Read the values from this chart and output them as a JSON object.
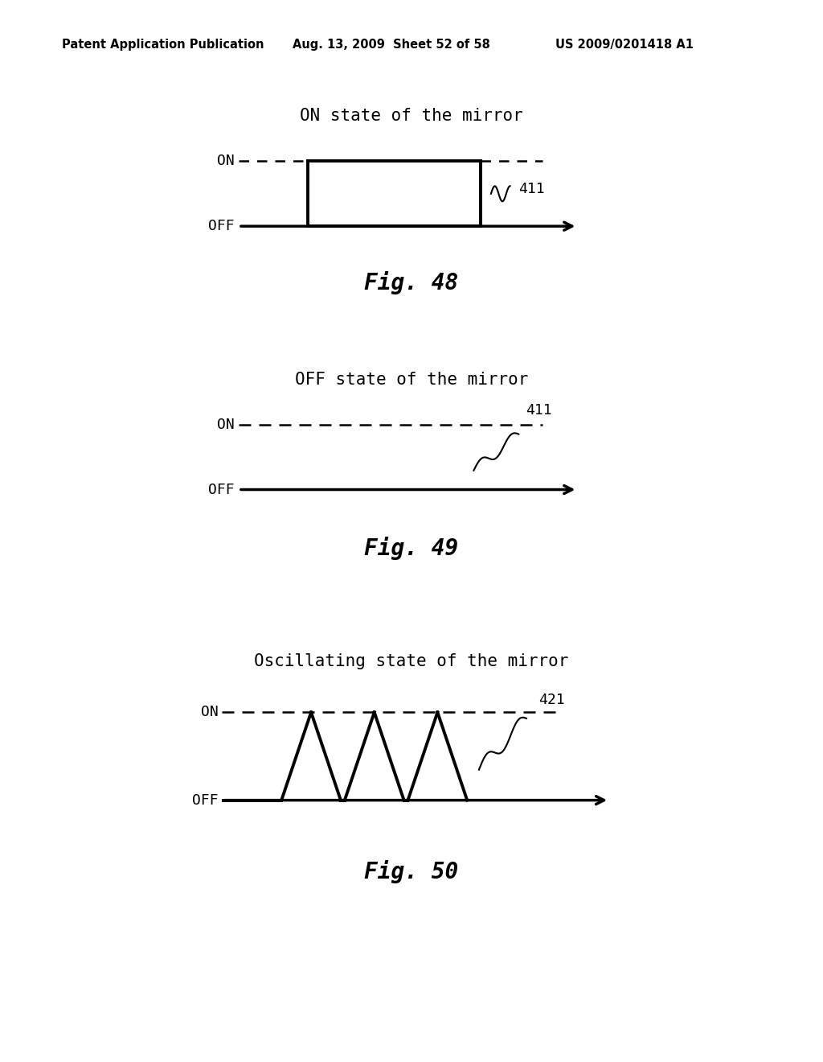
{
  "header_left": "Patent Application Publication",
  "header_mid": "Aug. 13, 2009  Sheet 52 of 58",
  "header_right": "US 2009/0201418 A1",
  "fig48_title": "ON state of the mirror",
  "fig49_title": "OFF state of the mirror",
  "fig50_title": "Oscillating state of the mirror",
  "fig48_label": "Fig. 48",
  "fig49_label": "Fig. 49",
  "fig50_label": "Fig. 50",
  "label_411_48": "411",
  "label_411_49": "411",
  "label_421": "421",
  "on_label": "ON",
  "off_label": "OFF",
  "bg_color": "#ffffff",
  "line_color": "#000000",
  "header_fontsize": 10.5,
  "title_fontsize": 15,
  "label_fontsize": 13,
  "fig_label_fontsize": 20,
  "axis_label_fontsize": 13,
  "lw_signal": 2.8,
  "lw_dashed": 1.8,
  "lw_arrow": 2.5
}
